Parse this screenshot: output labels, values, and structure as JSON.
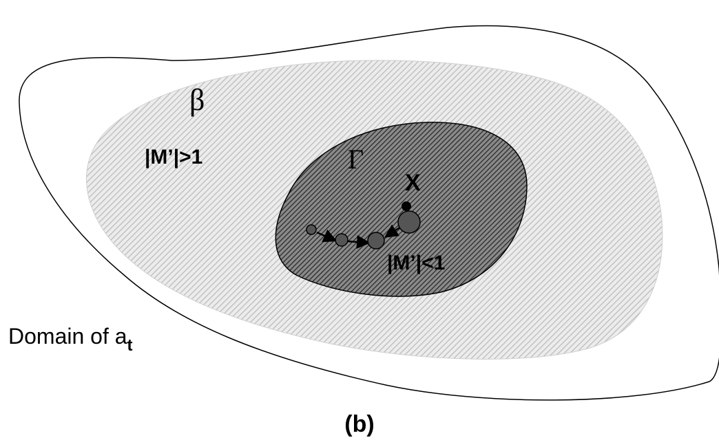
{
  "labels": {
    "beta": "β",
    "gamma": "Γ",
    "outer_condition": "|M’|>1",
    "inner_condition": "|M’|<1",
    "fixed_point": "X",
    "domain_text": "Domain of a",
    "domain_subscript": "t",
    "caption": "(b)"
  },
  "colors": {
    "outline": "#000000",
    "outer_hatch_line": "#b8b8b8",
    "outer_region_fill": "#ececec",
    "inner_hatch_line": "#2a2a2a",
    "inner_region_fill": "#8a8a8a",
    "trajectory_point": "#555555"
  }
}
